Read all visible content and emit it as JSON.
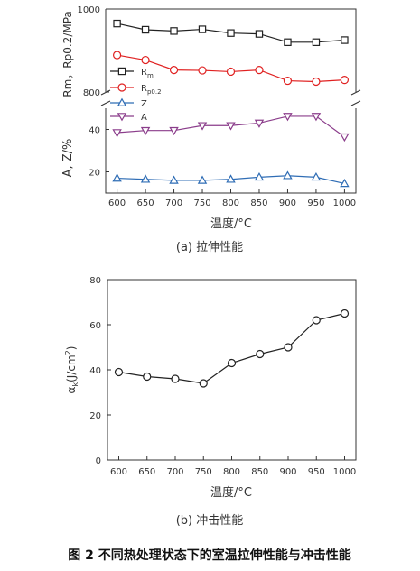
{
  "figure": {
    "caption": "图 2  不同热处理状态下的室温拉伸性能与冲击性能"
  },
  "chart_data": [
    {
      "type": "line",
      "subplot_label": "(a) 拉伸性能",
      "xlabel": "温度/°C",
      "x": [
        600,
        650,
        700,
        750,
        800,
        850,
        900,
        950,
        1000
      ],
      "xlim": [
        580,
        1020
      ],
      "upper_panel": {
        "ylabel": "Rm，Rp0.2/MPa",
        "ylim": [
          800,
          1000
        ],
        "yticks": [
          "800",
          "1000"
        ],
        "series": [
          {
            "name": "Rm",
            "legend_main": "R",
            "legend_sub": "m",
            "marker": "square",
            "color": "#222222",
            "values": [
              965,
              950,
              947,
              951,
              942,
              940,
              920,
              920,
              925
            ]
          },
          {
            "name": "Rp0.2",
            "legend_main": "R",
            "legend_sub": "p0.2",
            "marker": "circle",
            "color": "#e02020",
            "values": [
              889,
              877,
              853,
              852,
              849,
              853,
              827,
              825,
              829
            ]
          }
        ]
      },
      "lower_panel": {
        "ylabel": "A, Z/%",
        "ylim": [
          10,
          50
        ],
        "yticks": [
          "20",
          "40"
        ],
        "series": [
          {
            "name": "Z",
            "legend_main": "Z",
            "marker": "triangle-up",
            "color": "#2f6db5",
            "values": [
              17.0,
              16.5,
              16.0,
              16.0,
              16.5,
              17.5,
              18.2,
              17.5,
              14.5
            ]
          },
          {
            "name": "A",
            "legend_main": "A",
            "marker": "triangle-down",
            "color": "#8b3d8b",
            "values": [
              38.5,
              39.5,
              39.5,
              41.8,
              41.8,
              43.0,
              46.2,
              46.2,
              36.5
            ]
          }
        ]
      }
    },
    {
      "type": "line",
      "subplot_label": "(b) 冲击性能",
      "xlabel": "温度/°C",
      "ylabel_main": "α",
      "ylabel_sub": "k",
      "ylabel_rest": "(J/cm",
      "ylabel_sup": "2",
      "ylabel_end": ")",
      "x": [
        600,
        650,
        700,
        750,
        800,
        850,
        900,
        950,
        1000
      ],
      "xlim": [
        580,
        1020
      ],
      "ylim": [
        0,
        80
      ],
      "yticks": [
        "0",
        "20",
        "40",
        "60",
        "80"
      ],
      "series": [
        {
          "name": "αk",
          "marker": "circle",
          "color": "#222222",
          "values": [
            39,
            37,
            36,
            34,
            43,
            47,
            50,
            62,
            65
          ]
        }
      ]
    }
  ]
}
